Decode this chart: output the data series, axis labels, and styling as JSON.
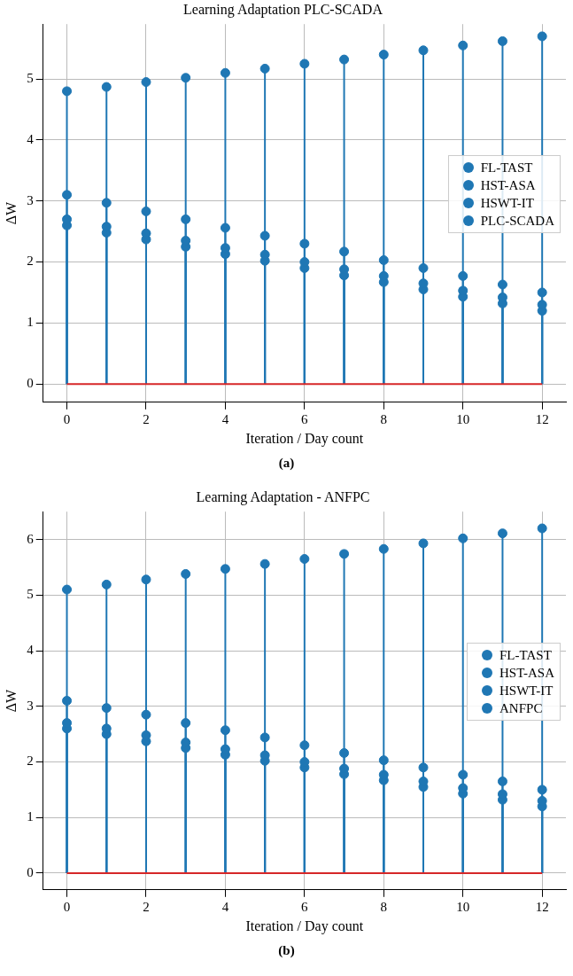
{
  "chart_data": [
    {
      "type": "lollipop",
      "title": "Learning Adaptation PLC-SCADA",
      "xlabel": "Iteration / Day count",
      "ylabel": "ΔW",
      "x": [
        0,
        1,
        2,
        3,
        4,
        5,
        6,
        7,
        8,
        9,
        10,
        11,
        12
      ],
      "series": [
        {
          "name": "FL-TAST",
          "color": "#1f77b4",
          "values": [
            3.1,
            2.97,
            2.83,
            2.7,
            2.56,
            2.43,
            2.3,
            2.17,
            2.03,
            1.9,
            1.77,
            1.63,
            1.5
          ]
        },
        {
          "name": "HST-ASA",
          "color": "#1f77b4",
          "values": [
            2.7,
            2.58,
            2.47,
            2.35,
            2.23,
            2.12,
            2.0,
            1.88,
            1.77,
            1.65,
            1.53,
            1.42,
            1.3
          ]
        },
        {
          "name": "HSWT-IT",
          "color": "#1f77b4",
          "values": [
            2.6,
            2.48,
            2.37,
            2.25,
            2.13,
            2.02,
            1.9,
            1.78,
            1.67,
            1.55,
            1.43,
            1.32,
            1.2
          ]
        },
        {
          "name": "PLC-SCADA",
          "color": "#1f77b4",
          "values": [
            4.8,
            4.87,
            4.95,
            5.02,
            5.1,
            5.17,
            5.25,
            5.32,
            5.4,
            5.47,
            5.55,
            5.62,
            5.7
          ]
        }
      ],
      "xlim": [
        -0.6,
        12.6
      ],
      "xticks": [
        0,
        2,
        4,
        6,
        8,
        10,
        12
      ],
      "ylim": [
        -0.3,
        5.9
      ],
      "yticks": [
        0,
        1,
        2,
        3,
        4,
        5
      ],
      "grid": true,
      "legend": "right",
      "marker": "circle",
      "annotations": [
        "(a)"
      ],
      "ref_lines": [
        {
          "axis": "y",
          "value": 0,
          "color": "#d62728"
        }
      ]
    },
    {
      "type": "lollipop",
      "title": "Learning Adaptation - ANFPC",
      "xlabel": "Iteration / Day count",
      "ylabel": "ΔW",
      "x": [
        0,
        1,
        2,
        3,
        4,
        5,
        6,
        7,
        8,
        9,
        10,
        11,
        12
      ],
      "series": [
        {
          "name": "FL-TAST",
          "color": "#1f77b4",
          "values": [
            3.1,
            2.97,
            2.85,
            2.7,
            2.57,
            2.44,
            2.3,
            2.16,
            2.03,
            1.9,
            1.77,
            1.65,
            1.5
          ]
        },
        {
          "name": "HST-ASA",
          "color": "#1f77b4",
          "values": [
            2.7,
            2.6,
            2.48,
            2.35,
            2.23,
            2.12,
            2.0,
            1.88,
            1.77,
            1.65,
            1.53,
            1.42,
            1.3
          ]
        },
        {
          "name": "HSWT-IT",
          "color": "#1f77b4",
          "values": [
            2.6,
            2.5,
            2.37,
            2.25,
            2.13,
            2.02,
            1.9,
            1.78,
            1.67,
            1.55,
            1.43,
            1.32,
            1.2
          ]
        },
        {
          "name": "ANFPC",
          "color": "#1f77b4",
          "values": [
            5.1,
            5.19,
            5.28,
            5.38,
            5.47,
            5.56,
            5.65,
            5.74,
            5.83,
            5.93,
            6.02,
            6.11,
            6.2
          ]
        }
      ],
      "xlim": [
        -0.6,
        12.6
      ],
      "xticks": [
        0,
        2,
        4,
        6,
        8,
        10,
        12
      ],
      "ylim": [
        -0.3,
        6.5
      ],
      "yticks": [
        0,
        1,
        2,
        3,
        4,
        5,
        6
      ],
      "grid": true,
      "legend": "right",
      "marker": "circle",
      "annotations": [
        "(b)"
      ],
      "ref_lines": [
        {
          "axis": "y",
          "value": 0,
          "color": "#d62728"
        }
      ]
    }
  ]
}
